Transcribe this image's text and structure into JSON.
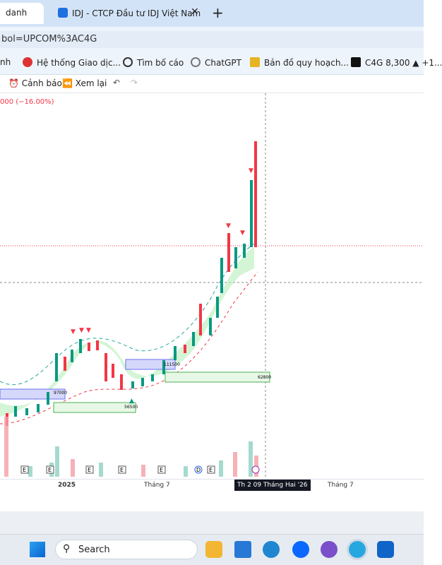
{
  "tabs": [
    "danh",
    "IDJ - CTCP Đầu tư IDJ Việt Nam"
  ],
  "address": "bol=UPCOM%3AC4G",
  "bookmarks": [
    "nh",
    "Hệ thống Giao dịc...",
    "Tìm bố cáo",
    "ChatGPT",
    "Bản đồ quy hoạch...",
    "C4G 8,300 ▲ +1..."
  ],
  "toolbar": {
    "alert": "Cảnh báo",
    "replay": "Xem lại"
  },
  "change": "000 (−16.00%)",
  "boxes": [
    "97000",
    "111500",
    "56500",
    "62800"
  ],
  "events": [
    "E",
    "E",
    "E",
    "E",
    "E",
    "D",
    "E"
  ],
  "time_axis": [
    "2025",
    "Tháng 7",
    "Th 2 09 Tháng Hai '26",
    "Tháng 7"
  ],
  "taskbar": {
    "search": "Search"
  }
}
